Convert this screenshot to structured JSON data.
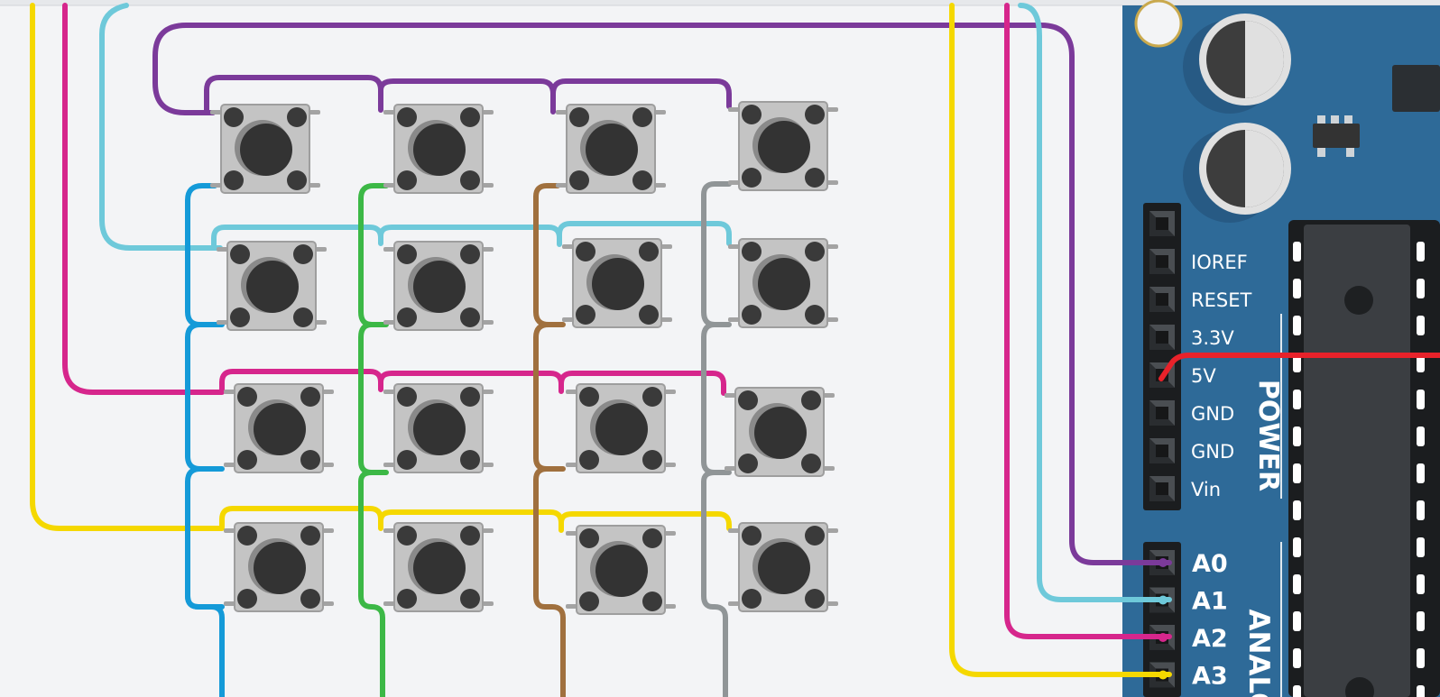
{
  "board": {
    "color": "#2e6a98",
    "power_header_labels": [
      "IOREF",
      "RESET",
      "3.3V",
      "5V",
      "GND",
      "GND",
      "Vin"
    ],
    "power_section_label": "POWER",
    "analog_pin_labels": [
      "A0",
      "A1",
      "A2",
      "A3"
    ],
    "analog_section_label": "ANALO"
  },
  "wire_colors": {
    "row1": "#7b3a9a",
    "row2": "#6ec9da",
    "row3": "#d6268c",
    "row4": "#f5d800",
    "col1": "#149ad8",
    "col2": "#3cb846",
    "col3": "#a0703e",
    "col4": "#909597",
    "power": "#e8222a"
  },
  "keypad": {
    "rows": 4,
    "cols": 4,
    "button_icon": "tactile-pushbutton-icon"
  }
}
